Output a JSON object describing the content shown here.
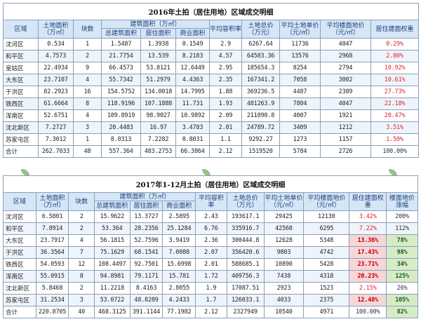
{
  "table2016": {
    "title": "2016年土拍（居住用地）区域成交明细",
    "headers": {
      "district": "区域",
      "land_area": "土地面积（万㎡）",
      "blocks": "块数",
      "build_area_group": "建筑面积（万㎡）",
      "total_build": "总建筑面积",
      "res_area": "居住面积",
      "com_area": "商业面积",
      "avg_far": "平均容积率",
      "total_price": "土地总价（万元）",
      "avg_land_price": "平均土地单价（元/㎡）",
      "avg_floor_price": "平均楼面地价（元/㎡）",
      "res_weight": "居住建面权重"
    },
    "rows": [
      {
        "district": "沈河区",
        "land_area": "0.534",
        "blocks": "1",
        "total_build": "1.5487",
        "res_area": "1.3938",
        "com_area": "0.1549",
        "avg_far": "2.9",
        "total_price": "6267.64",
        "avg_land_price": "11736",
        "avg_floor_price": "4047",
        "res_weight": "0.29%"
      },
      {
        "district": "和平区",
        "land_area": "4.7573",
        "blocks": "2",
        "total_build": "21.7754",
        "res_area": "13.539",
        "com_area": "8.2183",
        "avg_far": "4.57",
        "total_price": "64583.36",
        "avg_land_price": "13576",
        "avg_floor_price": "2968",
        "res_weight": "2.80%"
      },
      {
        "district": "皇姑区",
        "land_area": "22.4934",
        "blocks": "9",
        "total_build": "66.4573",
        "res_area": "53.8121",
        "com_area": "12.6449",
        "avg_far": "2.95",
        "total_price": "185654.3",
        "avg_land_price": "8254",
        "avg_floor_price": "2794",
        "res_weight": "10.92%"
      },
      {
        "district": "大东区",
        "land_area": "23.7107",
        "blocks": "4",
        "total_build": "55.7342",
        "res_area": "51.2979",
        "com_area": "4.4363",
        "avg_far": "2.35",
        "total_price": "167341.2",
        "avg_land_price": "7058",
        "avg_floor_price": "3002",
        "res_weight": "10.61%"
      },
      {
        "district": "于洪区",
        "land_area": "82.2923",
        "blocks": "16",
        "total_build": "154.5752",
        "res_area": "134.0018",
        "com_area": "14.7995",
        "avg_far": "1.88",
        "total_price": "369236.5",
        "avg_land_price": "4487",
        "avg_floor_price": "2389",
        "res_weight": "27.73%"
      },
      {
        "district": "铁西区",
        "land_area": "61.6664",
        "blocks": "8",
        "total_build": "118.9196",
        "res_area": "107.1888",
        "com_area": "11.731",
        "avg_far": "1.93",
        "total_price": "481263.9",
        "avg_land_price": "7804",
        "avg_floor_price": "4047",
        "res_weight": "22.18%"
      },
      {
        "district": "浑南区",
        "land_area": "52.6751",
        "blocks": "4",
        "total_build": "109.8919",
        "res_area": "98.9027",
        "com_area": "10.9892",
        "avg_far": "2.09",
        "total_price": "211090.8",
        "avg_land_price": "4007",
        "avg_floor_price": "1921",
        "res_weight": "20.47%"
      },
      {
        "district": "沈北新区",
        "land_area": "7.2727",
        "blocks": "3",
        "total_build": "20.4483",
        "res_area": "16.97",
        "com_area": "3.4783",
        "avg_far": "2.81",
        "total_price": "24789.72",
        "avg_land_price": "3409",
        "avg_floor_price": "1212",
        "res_weight": "3.51%"
      },
      {
        "district": "苏家屯区",
        "land_area": "7.3012",
        "blocks": "1",
        "total_build": "8.0313",
        "res_area": "7.2282",
        "com_area": "0.8031",
        "avg_far": "1.1",
        "total_price": "9292.27",
        "avg_land_price": "1273",
        "avg_floor_price": "1157",
        "res_weight": "1.50%"
      }
    ],
    "total": {
      "district": "合计",
      "land_area": "262.7033",
      "blocks": "48",
      "total_build": "557.364",
      "res_area": "483.2753",
      "com_area": "66.3864",
      "avg_far": "2.12",
      "total_price": "1519520",
      "avg_land_price": "5784",
      "avg_floor_price": "2726",
      "res_weight": "100.00%"
    }
  },
  "table2017": {
    "title": "2017年1-12月土拍（居住用地）区域成交明细",
    "headers": {
      "district": "区域",
      "land_area": "土地面积（万㎡）",
      "blocks": "块数",
      "build_area_group": "建筑面积（万㎡）",
      "total_build": "总建筑面积",
      "res_area": "居住面积",
      "com_area": "商业面积",
      "avg_far": "平均容积率",
      "total_price": "土地总价（万元）",
      "avg_land_price": "平均土地单价（元/㎡）",
      "avg_floor_price": "平均楼面地价（元/㎡）",
      "res_weight": "居住建面权重",
      "surge": "楼面地价涨幅"
    },
    "rows": [
      {
        "district": "沈河区",
        "land_area": "6.5801",
        "blocks": "2",
        "total_build": "15.9622",
        "res_area": "13.3727",
        "com_area": "2.5895",
        "avg_far": "2.43",
        "total_price": "193617.1",
        "avg_land_price": "29425",
        "avg_floor_price": "12130",
        "res_weight": "3.42%",
        "surge": "200%"
      },
      {
        "district": "和平区",
        "land_area": "7.8914",
        "blocks": "2",
        "total_build": "53.364",
        "res_area": "28.2356",
        "com_area": "25.1284",
        "avg_far": "6.76",
        "total_price": "335916.7",
        "avg_land_price": "42568",
        "avg_floor_price": "6295",
        "res_weight": "7.22%",
        "surge": "112%"
      },
      {
        "district": "大东区",
        "land_area": "23.7917",
        "blocks": "4",
        "total_build": "56.1815",
        "res_area": "52.7596",
        "com_area": "3.9419",
        "avg_far": "2.36",
        "total_price": "300444.8",
        "avg_land_price": "12628",
        "avg_floor_price": "5348",
        "res_weight": "13.36%",
        "surge": "78%"
      },
      {
        "district": "于洪区",
        "land_area": "36.3564",
        "blocks": "7",
        "total_build": "75.1629",
        "res_area": "68.1541",
        "com_area": "7.0088",
        "avg_far": "2.07",
        "total_price": "356420.6",
        "avg_land_price": "9803",
        "avg_floor_price": "4742",
        "res_weight": "17.43%",
        "surge": "98%"
      },
      {
        "district": "铁西区",
        "land_area": "54.0593",
        "blocks": "12",
        "total_build": "108.4497",
        "res_area": "92.7501",
        "com_area": "15.6998",
        "avg_far": "2.01",
        "total_price": "588685.1",
        "avg_land_price": "10890",
        "avg_floor_price": "5428",
        "res_weight": "23.71%",
        "surge": "34%"
      },
      {
        "district": "浑南区",
        "land_area": "55.0915",
        "blocks": "8",
        "total_build": "94.8981",
        "res_area": "79.1171",
        "com_area": "15.781",
        "avg_far": "1.72",
        "total_price": "409756.3",
        "avg_land_price": "7438",
        "avg_floor_price": "4318",
        "res_weight": "20.23%",
        "surge": "125%"
      },
      {
        "district": "沈北新区",
        "land_area": "5.8468",
        "blocks": "2",
        "total_build": "11.2218",
        "res_area": "8.4163",
        "com_area": "2.8055",
        "avg_far": "1.9",
        "total_price": "17087.51",
        "avg_land_price": "2923",
        "avg_floor_price": "1523",
        "res_weight": "2.15%",
        "surge": "26%"
      },
      {
        "district": "苏家屯区",
        "land_area": "31.2534",
        "blocks": "3",
        "total_build": "53.0722",
        "res_area": "48.8289",
        "com_area": "4.2433",
        "avg_far": "1.7",
        "total_price": "126033.1",
        "avg_land_price": "4033",
        "avg_floor_price": "2375",
        "res_weight": "12.48%",
        "surge": "105%"
      }
    ],
    "total": {
      "district": "合计",
      "land_area": "220.8705",
      "blocks": "40",
      "total_build": "468.3125",
      "res_area": "391.1144",
      "com_area": "77.1982",
      "avg_far": "2.12",
      "total_price": "2327949",
      "avg_land_price": "10540",
      "avg_floor_price": "4971",
      "res_weight": "100.00%",
      "surge": "82%"
    }
  },
  "colors": {
    "header_bg": "#d6e6f7",
    "header_text": "#1b3f7a",
    "highlight_red": "#e6232b",
    "highlight_red_bg": "#f7d6d8",
    "highlight_green_bg": "#d7ecc6"
  }
}
